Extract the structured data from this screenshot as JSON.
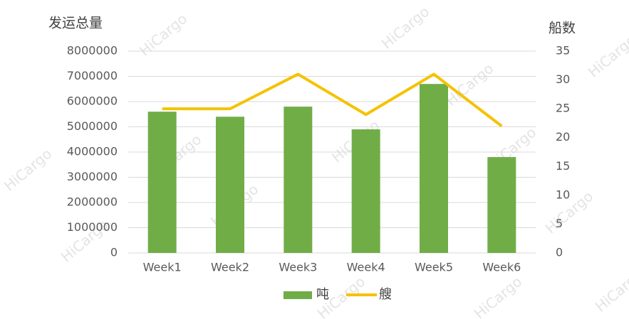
{
  "chart_data": {
    "type": "bar",
    "y_label": "发运总量",
    "y2_label": "船数",
    "watermark": "HiCargo",
    "categories": [
      "Week1",
      "Week2",
      "Week3",
      "Week4",
      "Week5",
      "Week6"
    ],
    "series": [
      {
        "name": "吨",
        "type": "bar",
        "color": "#70ad47",
        "values": [
          5600000,
          5400000,
          5800000,
          4900000,
          6700000,
          3800000
        ]
      },
      {
        "name": "艘",
        "type": "line",
        "axis": "y2",
        "color": "#f5c200",
        "values": [
          25,
          25,
          31,
          24,
          31,
          22
        ]
      }
    ],
    "ylim": [
      0,
      8000000
    ],
    "yticks": [
      0,
      1000000,
      2000000,
      3000000,
      4000000,
      5000000,
      6000000,
      7000000,
      8000000
    ],
    "y2lim": [
      0,
      35
    ],
    "y2ticks": [
      0,
      5,
      10,
      15,
      20,
      25,
      30,
      35
    ],
    "grid": true,
    "legend": "bottom"
  }
}
